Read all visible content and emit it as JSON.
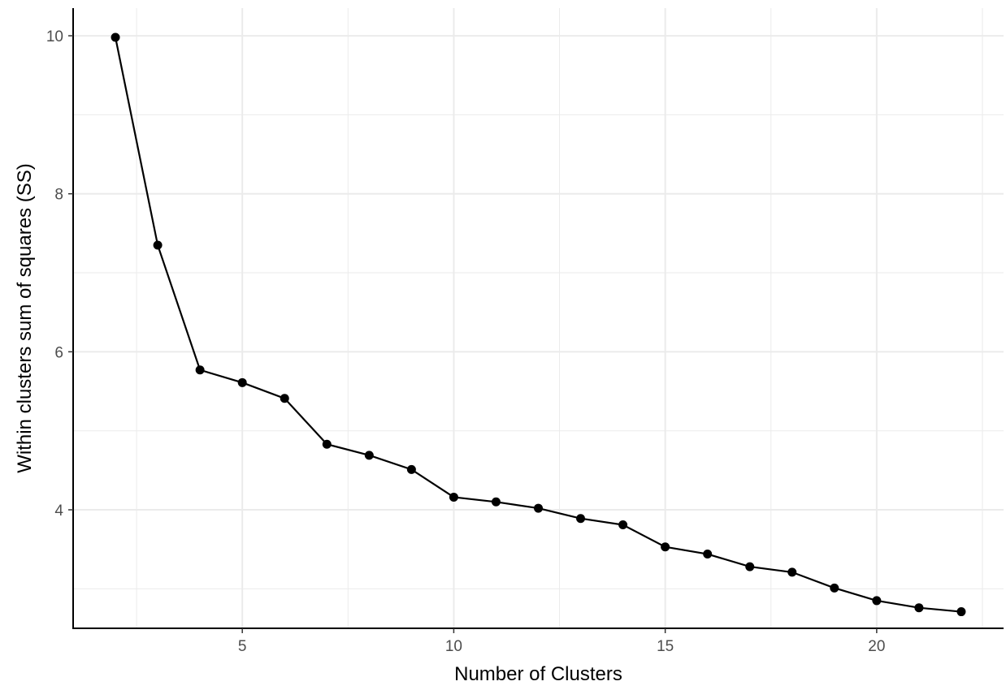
{
  "chart_data": {
    "type": "line",
    "xlabel": "Number of Clusters",
    "ylabel": "Within clusters sum of squares (SS)",
    "title": "",
    "xlim": [
      1,
      23
    ],
    "ylim": [
      2.5,
      10.35
    ],
    "x_ticks": [
      5,
      10,
      15,
      20
    ],
    "x_tick_labels": [
      "5",
      "10",
      "15",
      "20"
    ],
    "y_ticks": [
      4,
      6,
      8,
      10
    ],
    "y_tick_labels": [
      "4",
      "6",
      "8",
      "10"
    ],
    "x_minor_ticks": [
      2.5,
      7.5,
      12.5,
      17.5,
      22.5
    ],
    "y_minor_ticks": [
      3,
      5,
      7,
      9
    ],
    "grid": true,
    "legend": "none",
    "series": [
      {
        "color": "#000000",
        "x": [
          2,
          3,
          4,
          5,
          6,
          7,
          8,
          9,
          10,
          11,
          12,
          13,
          14,
          15,
          16,
          17,
          18,
          19,
          20,
          21,
          22
        ],
        "y": [
          9.98,
          7.35,
          5.77,
          5.61,
          5.41,
          4.83,
          4.69,
          4.51,
          4.16,
          4.1,
          4.02,
          3.89,
          3.81,
          3.53,
          3.44,
          3.28,
          3.21,
          3.01,
          2.85,
          2.76,
          2.71
        ]
      }
    ]
  }
}
